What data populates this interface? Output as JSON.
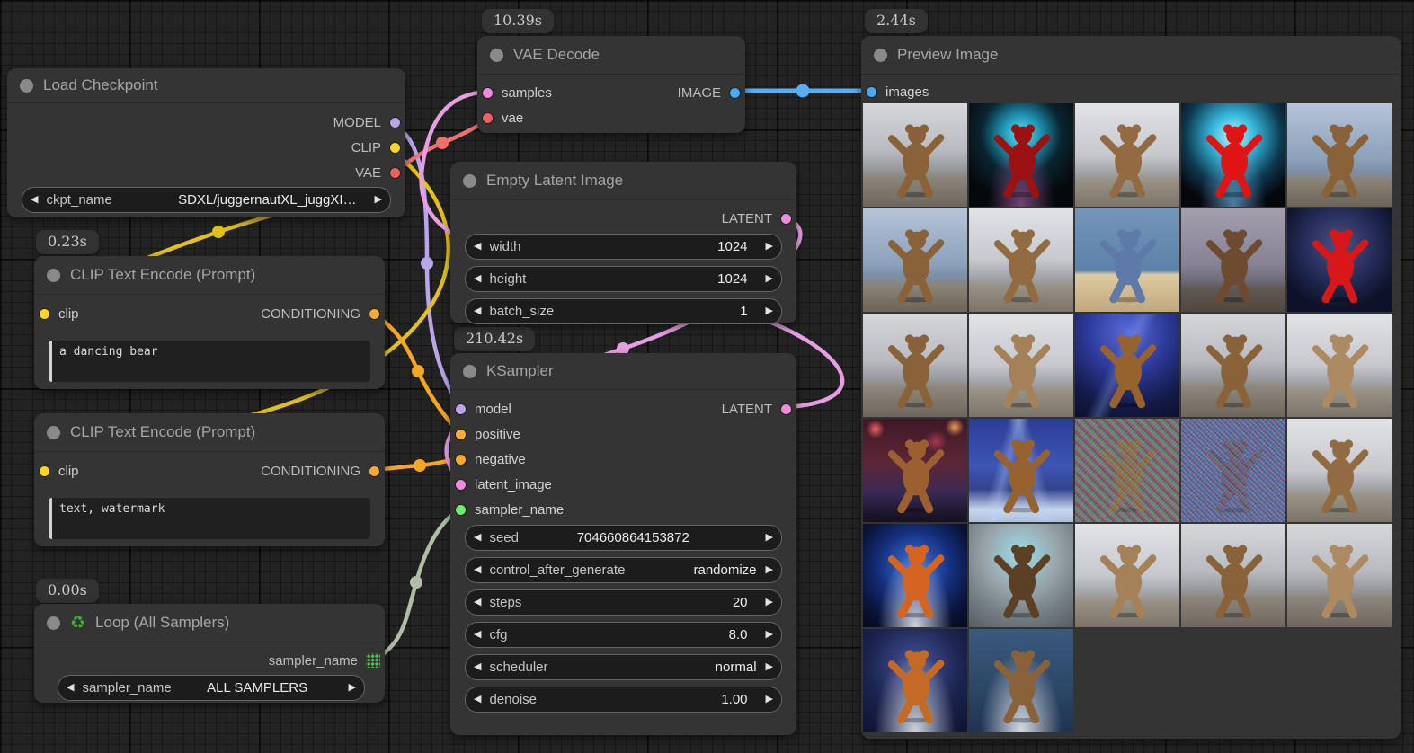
{
  "glyphs": {
    "arrow_left": "◀",
    "arrow_right": "▶"
  },
  "port_colors": {
    "title_dot": "#8a8a8a",
    "model": "#b9a5e8",
    "clip": "#ffd61e",
    "vae": "#f25f5f",
    "conditioning": "#ffab30",
    "latent": "#f48ae0",
    "image": "#4aa8f5",
    "sampler": "#6ef06e"
  },
  "wire_colors": {
    "model": "#b9a5e8",
    "clip": "#e3c117",
    "vae": "#f07070",
    "conditioning": "#f5a623",
    "latent": "#e79fe3",
    "image": "#56aef5",
    "sampler_loop": "#aebfa5"
  },
  "nodes": {
    "load_checkpoint": {
      "title": "Load Checkpoint",
      "outputs": [
        {
          "label": "MODEL"
        },
        {
          "label": "CLIP"
        },
        {
          "label": "VAE"
        }
      ],
      "widgets": [
        {
          "label": "ckpt_name",
          "value": "SDXL/juggernautXL_juggXI…"
        }
      ]
    },
    "clip_encode_1": {
      "badge": "0.23s",
      "title": "CLIP Text Encode (Prompt)",
      "inputs": [
        {
          "label": "clip"
        }
      ],
      "outputs": [
        {
          "label": "CONDITIONING"
        }
      ],
      "text": "a dancing bear"
    },
    "clip_encode_2": {
      "title": "CLIP Text Encode (Prompt)",
      "inputs": [
        {
          "label": "clip"
        }
      ],
      "outputs": [
        {
          "label": "CONDITIONING"
        }
      ],
      "text": "text, watermark"
    },
    "loop": {
      "badge": "0.00s",
      "icon": "♻",
      "title": "Loop (All Samplers)",
      "outputs": [
        {
          "label": "sampler_name"
        }
      ],
      "widgets": [
        {
          "label": "sampler_name",
          "value": "ALL SAMPLERS"
        }
      ]
    },
    "vae_decode": {
      "badge": "10.39s",
      "title": "VAE Decode",
      "inputs": [
        {
          "label": "samples"
        },
        {
          "label": "vae"
        }
      ],
      "outputs": [
        {
          "label": "IMAGE"
        }
      ]
    },
    "empty_latent": {
      "title": "Empty Latent Image",
      "outputs": [
        {
          "label": "LATENT"
        }
      ],
      "widgets": [
        {
          "label": "width",
          "value": "1024"
        },
        {
          "label": "height",
          "value": "1024"
        },
        {
          "label": "batch_size",
          "value": "1"
        }
      ]
    },
    "ksampler": {
      "badge": "210.42s",
      "title": "KSampler",
      "inputs": [
        {
          "label": "model"
        },
        {
          "label": "positive"
        },
        {
          "label": "negative"
        },
        {
          "label": "latent_image"
        },
        {
          "label": "sampler_name"
        }
      ],
      "outputs": [
        {
          "label": "LATENT"
        }
      ],
      "widgets": [
        {
          "label": "seed",
          "value": "704660864153872"
        },
        {
          "label": "control_after_generate",
          "value": "randomize"
        },
        {
          "label": "steps",
          "value": "20"
        },
        {
          "label": "cfg",
          "value": "8.0"
        },
        {
          "label": "scheduler",
          "value": "normal"
        },
        {
          "label": "denoise",
          "value": "1.00"
        }
      ]
    },
    "preview": {
      "badge": "2.44s",
      "title": "Preview Image",
      "inputs": [
        {
          "label": "images"
        }
      ]
    }
  },
  "preview": {
    "images": [
      {
        "bg": "linear-gradient(180deg,#d6d7db 0%,#b9bbc1 45%,#9a9ca2 62%,#8b857b 72%,#6d675d 100%)",
        "bear": "#8a6239"
      },
      {
        "bg": "radial-gradient(ellipse at 50% 98%, rgba(220,120,220,.5) 0%, transparent 45%), radial-gradient(circle at 50% 30%,#5ae8f5 0%,#1e90b0 22%,#0a2430 45%,#06090c 75%)",
        "bear": "#9c1212"
      },
      {
        "bg": "linear-gradient(180deg,#e2e3e7 0%,#c6c8ce 50%,#a5a7ad 65%,#979186 75%,#7a7469 100%)",
        "bear": "#936b42"
      },
      {
        "bg": "radial-gradient(ellipse at 50% 98%, rgba(120,200,255,.6) 0%, transparent 45%), radial-gradient(circle at 50% 32%,#bdf6ff 0%,#35b8dc 25%,#0d3a50 55%,#05070d 80%)",
        "bear": "#e01414"
      },
      {
        "bg": "linear-gradient(180deg,#b6c4d8 0%,#8ba0ba 55%,#7d90a8 65%,#8a8376 75%,#6b6458 100%)",
        "bear": "#8a6239"
      },
      {
        "bg": "linear-gradient(180deg,#b6c4d8 0%,#8ba0ba 55%,#7d90a8 65%,#8a8376 75%,#6b6458 100%)",
        "bear": "#8a6239"
      },
      {
        "bg": "linear-gradient(180deg,#e2e3e7 0%,#c6c8ce 50%,#a5a7ad 65%,#979186 75%,#7a7469 100%)",
        "bear": "#936b42"
      },
      {
        "bg": "linear-gradient(180deg,#7396ba 0%,#5d82a8 60%,#decba0 64%,#c0a87e 100%)",
        "bear": "#5d7aa8"
      },
      {
        "bg": "linear-gradient(180deg,#a39fae 0%,#868294 55%,#6e6a76 70%,#5e5852 78%,#4e483f 100%)",
        "bear": "#6e4a30"
      },
      {
        "bg": "radial-gradient(circle at 50% 36%,#4a5287 0%,#232a55 45%,#0e1228 75%)",
        "bear": "#d81818"
      },
      {
        "bg": "linear-gradient(180deg,#d6d7db 0%,#b9bbc1 45%,#9a9ca2 62%,#8b857b 72%,#6d675d 100%)",
        "bear": "#8a6239"
      },
      {
        "bg": "linear-gradient(180deg,#e2e3e7 0%,#c6c8ce 50%,#a5a7ad 65%,#979186 75%,#7a7469 100%)",
        "bear": "#a5815a"
      },
      {
        "bg": "linear-gradient(115deg, transparent 38%, rgba(150,170,255,.3) 46%, transparent 54%), radial-gradient(circle at 50% 18%,#5a6ad8 0%,#2c3a9a 40%,#141a48 75%,#0c102e 100%)",
        "bear": "#96622e"
      },
      {
        "bg": "linear-gradient(180deg,#d6d7db 0%,#b9bbc1 45%,#9a9ca2 62%,#8b857b 72%,#6d675d 100%)",
        "bear": "#8a6239"
      },
      {
        "bg": "linear-gradient(180deg,#e2e3e7 0%,#c6c8ce 50%,#a5a7ad 65%,#979186 75%,#7a7469 100%)",
        "bear": "#ad8a62"
      },
      {
        "bg": "radial-gradient(circle at 12% 10%, rgba(255,100,100,.95) 0%, transparent 7%), radial-gradient(circle at 88% 8%, rgba(255,170,90,.9) 0%, transparent 7%), radial-gradient(circle at 70% 22%, rgba(255,80,120,.5) 0%, transparent 10%), linear-gradient(180deg,#401826 0%,#5c2638 42%,#3c2a52 70%,#241c3a 85%,#16101f 100%)",
        "bear": "#9c6030"
      },
      {
        "bg": "linear-gradient(105deg, transparent 30%, rgba(190,210,255,.35) 38%, transparent 46%), linear-gradient(75deg, transparent 50%, rgba(190,210,255,.3) 58%, transparent 66%), linear-gradient(180deg,#2b3c96 0%,#3e55b4 45%,#33438e 68%,#c8d6ec 88%,#aebfdc 100%)",
        "bear": "#96622e"
      },
      {
        "bg": "repeating-linear-gradient(45deg,#4a5a7a 0 2px,#8a6a42 2px 4px,#3a6a56 4px 6px,#7a4666 6px 8px)",
        "bear": "#7c5e3a",
        "noise": true
      },
      {
        "bg": "repeating-linear-gradient(45deg,#33427a 0 2px,#5666a0 2px 4px,#443670 4px 6px,#6678aa 6px 8px)",
        "bear": "#584a66",
        "noise": true
      },
      {
        "bg": "linear-gradient(180deg,#e2e3e7 0%,#c6c8ce 50%,#a5a7ad 65%,#979186 75%,#7a7469 100%)",
        "bear": "#936b42"
      },
      {
        "bg": "radial-gradient(ellipse at 50% 100%, #cdd2dc 0%, rgba(205,210,220,0) 50%), radial-gradient(circle at 50% 42%,#3d7ae8 0%,#16307e 45%,#0a1338 75%,#05081c 100%)",
        "bear": "#d4641f"
      },
      {
        "bg": "radial-gradient(circle at 50% 30%,#9adeea 0%,#9aa6ac 40%,#737d82 70%,#565e62 100%)",
        "bear": "#5c4026"
      },
      {
        "bg": "linear-gradient(180deg,#e2e3e7 0%,#c6c8ce 50%,#a5a7ad 65%,#979186 75%,#7a7469 100%)",
        "bear": "#a5815a"
      },
      {
        "bg": "linear-gradient(180deg,#d6d7db 0%,#b9bbc1 45%,#9a9ca2 62%,#8b857b 72%,#6d675d 100%)",
        "bear": "#8a6239"
      },
      {
        "bg": "linear-gradient(180deg,#d6d7db 0%,#b9bbc1 45%,#9a9ca2 62%,#8b857b 72%,#6d675d 100%)",
        "bear": "#ad8a62"
      },
      {
        "bg": "radial-gradient(ellipse at 50% 100%, #cfd4de 0%, rgba(207,212,222,0) 55%), radial-gradient(circle at 50% 36%,#46549e 0%,#1c2450 55%,#0d1230 100%)",
        "bear": "#c56a24"
      },
      {
        "bg": "radial-gradient(ellipse at 50% 100%, #d8dbe2 0%, rgba(216,219,226,0) 55%), linear-gradient(180deg,#3a5a7e 0%,#2c4666 60%,#1e3350 100%)",
        "bear": "#8a6239"
      }
    ]
  }
}
